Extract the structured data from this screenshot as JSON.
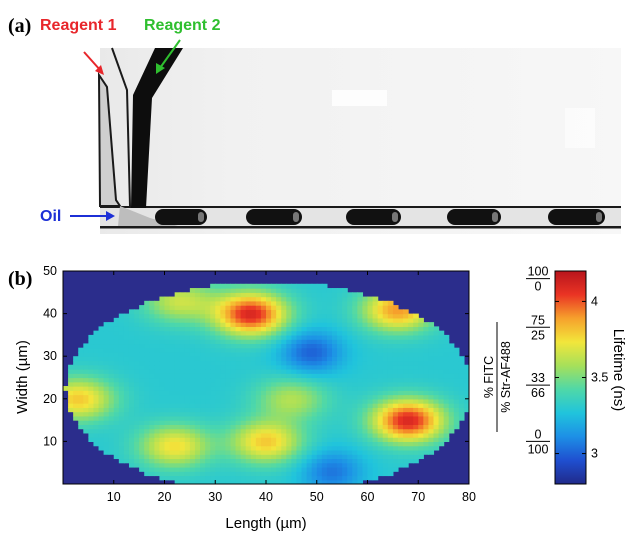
{
  "panel_a": {
    "label": "(a)",
    "annotations": [
      {
        "text": "Reagent 1",
        "color": "#e8262b"
      },
      {
        "text": "Reagent 2",
        "color": "#2fbf2f"
      },
      {
        "text": "Oil",
        "color": "#1c2fd6"
      }
    ]
  },
  "panel_b": {
    "label": "(b)",
    "colors": {
      "background": "#2b2d8c",
      "colormap": [
        "#202a8a",
        "#1f4fd0",
        "#1d8fe6",
        "#20c4dc",
        "#4fd8a8",
        "#a6e05a",
        "#f2e63b",
        "#f6a12c",
        "#ea3424",
        "#b8141c"
      ]
    },
    "colorbar_label": "Lifetime (ns)",
    "ratio_label": {
      "numerator": "% FITC",
      "denominator": "% Str-AF488"
    },
    "ratio_ticks": [
      {
        "num": "100",
        "den": "0"
      },
      {
        "num": "75",
        "den": "25"
      },
      {
        "num": "33",
        "den": "66"
      },
      {
        "num": "0",
        "den": "100"
      }
    ]
  },
  "chart_data": {
    "type": "heatmap",
    "title": "",
    "xlabel": "Length (µm)",
    "ylabel": "Width (µm)",
    "xlim": [
      0,
      80
    ],
    "ylim": [
      0,
      50
    ],
    "x_ticks": [
      "10",
      "20",
      "30",
      "40",
      "50",
      "60",
      "70",
      "80"
    ],
    "y_ticks": [
      "10",
      "20",
      "30",
      "40",
      "50"
    ],
    "colorbar": {
      "label": "Lifetime (ns)",
      "range": [
        2.8,
        4.2
      ],
      "ticks": [
        "3",
        "3.5",
        "4"
      ]
    },
    "baseline_lifetime_ns": 3.3,
    "hotspots": [
      {
        "x": 37,
        "y": 40,
        "lifetime_ns": 4.1
      },
      {
        "x": 68,
        "y": 15,
        "lifetime_ns": 4.1
      },
      {
        "x": 66,
        "y": 41,
        "lifetime_ns": 3.9
      },
      {
        "x": 40,
        "y": 10,
        "lifetime_ns": 3.8
      },
      {
        "x": 22,
        "y": 9,
        "lifetime_ns": 3.75
      },
      {
        "x": 3,
        "y": 20,
        "lifetime_ns": 3.8
      },
      {
        "x": 23,
        "y": 43,
        "lifetime_ns": 3.65
      },
      {
        "x": 45,
        "y": 20,
        "lifetime_ns": 3.6
      }
    ],
    "coldspots": [
      {
        "x": 49,
        "y": 31,
        "lifetime_ns": 3.0
      },
      {
        "x": 53,
        "y": 3,
        "lifetime_ns": 3.05
      }
    ]
  }
}
